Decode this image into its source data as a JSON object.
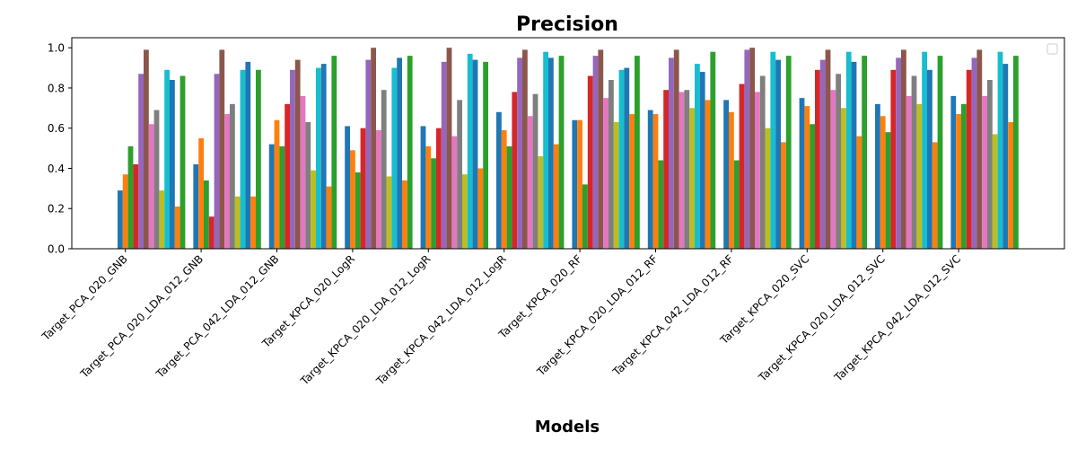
{
  "chart_data": {
    "type": "bar",
    "title": "Precision",
    "xlabel": "Models",
    "ylabel": "",
    "ylim": [
      0,
      1.05
    ],
    "y_ticks": [
      "0.0",
      "0.2",
      "0.4",
      "0.6",
      "0.8",
      "1.0"
    ],
    "legend": "top-right (empty)",
    "grid": false,
    "colors": [
      "#1f77b4",
      "#ff7f0e",
      "#2ca02c",
      "#d62728",
      "#9467bd",
      "#8c564b",
      "#e377c2",
      "#7f7f7f",
      "#bcbd22",
      "#17becf",
      "#1f77b4",
      "#ff7f0e",
      "#2ca02c"
    ],
    "categories": [
      "Target_PCA_020_GNB",
      "Target_PCA_020_LDA_012_GNB",
      "Target_PCA_042_LDA_012_GNB",
      "Target_KPCA_020_LogR",
      "Target_KPCA_020_LDA_012_LogR",
      "Target_KPCA_042_LDA_012_LogR",
      "Target_KPCA_020_RF",
      "Target_KPCA_020_LDA_012_RF",
      "Target_KPCA_042_LDA_012_RF",
      "Target_KPCA_020_SVC",
      "Target_KPCA_020_LDA_012_SVC",
      "Target_KPCA_042_LDA_012_SVC"
    ],
    "series": [
      {
        "values": [
          0.29,
          0.42,
          0.52,
          0.61,
          0.61,
          0.68,
          0.64,
          0.69,
          0.74,
          0.75,
          0.72,
          0.76
        ]
      },
      {
        "values": [
          0.37,
          0.55,
          0.64,
          0.49,
          0.51,
          0.59,
          0.64,
          0.67,
          0.68,
          0.71,
          0.66,
          0.67
        ]
      },
      {
        "values": [
          0.51,
          0.34,
          0.51,
          0.38,
          0.45,
          0.51,
          0.32,
          0.44,
          0.44,
          0.62,
          0.58,
          0.72
        ]
      },
      {
        "values": [
          0.42,
          0.16,
          0.72,
          0.6,
          0.6,
          0.78,
          0.86,
          0.79,
          0.82,
          0.89,
          0.89,
          0.89
        ]
      },
      {
        "values": [
          0.87,
          0.87,
          0.89,
          0.94,
          0.93,
          0.95,
          0.96,
          0.95,
          0.99,
          0.94,
          0.95,
          0.95
        ]
      },
      {
        "values": [
          0.99,
          0.99,
          0.94,
          1.0,
          1.0,
          0.99,
          0.99,
          0.99,
          1.0,
          0.99,
          0.99,
          0.99
        ]
      },
      {
        "values": [
          0.62,
          0.67,
          0.76,
          0.59,
          0.56,
          0.66,
          0.75,
          0.78,
          0.78,
          0.79,
          0.76,
          0.76
        ]
      },
      {
        "values": [
          0.69,
          0.72,
          0.63,
          0.79,
          0.74,
          0.77,
          0.84,
          0.79,
          0.86,
          0.87,
          0.86,
          0.84
        ]
      },
      {
        "values": [
          0.29,
          0.26,
          0.39,
          0.36,
          0.37,
          0.46,
          0.63,
          0.7,
          0.6,
          0.7,
          0.72,
          0.57
        ]
      },
      {
        "values": [
          0.89,
          0.89,
          0.9,
          0.9,
          0.97,
          0.98,
          0.89,
          0.92,
          0.98,
          0.98,
          0.98,
          0.98
        ]
      },
      {
        "values": [
          0.84,
          0.93,
          0.92,
          0.95,
          0.94,
          0.95,
          0.9,
          0.88,
          0.94,
          0.93,
          0.89,
          0.92
        ]
      },
      {
        "values": [
          0.21,
          0.26,
          0.31,
          0.34,
          0.4,
          0.52,
          0.67,
          0.74,
          0.53,
          0.56,
          0.53,
          0.63
        ]
      },
      {
        "values": [
          0.86,
          0.89,
          0.96,
          0.96,
          0.93,
          0.96,
          0.96,
          0.98,
          0.96,
          0.96,
          0.96,
          0.96
        ]
      }
    ]
  }
}
